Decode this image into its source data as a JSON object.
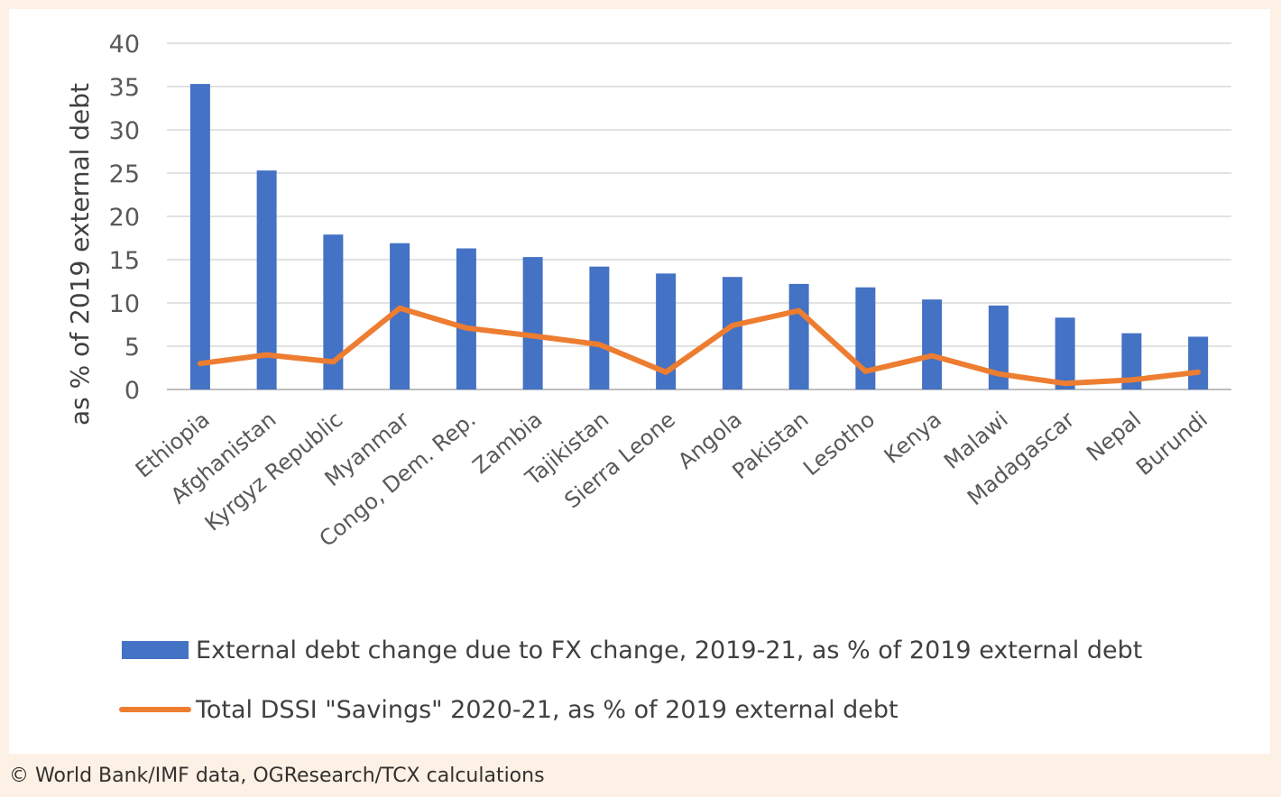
{
  "chart_data": {
    "type": "bar",
    "categories": [
      "Ethiopia",
      "Afghanistan",
      "Kyrgyz Republic",
      "Myanmar",
      "Congo, Dem. Rep.",
      "Zambia",
      "Tajikistan",
      "Sierra Leone",
      "Angola",
      "Pakistan",
      "Lesotho",
      "Kenya",
      "Malawi",
      "Madagascar",
      "Nepal",
      "Burundi"
    ],
    "series": [
      {
        "name": "External debt change due to FX change, 2019-21, as % of 2019 external debt",
        "type": "bar",
        "color": "#4472c4",
        "values": [
          35.3,
          25.3,
          17.9,
          16.9,
          16.3,
          15.3,
          14.2,
          13.4,
          13.0,
          12.2,
          11.8,
          10.4,
          9.7,
          8.3,
          6.5,
          6.1
        ]
      },
      {
        "name": "Total DSSI \"Savings\" 2020-21, as % of 2019 external debt",
        "type": "line",
        "color": "#ed7d31",
        "values": [
          3.0,
          4.0,
          3.2,
          9.4,
          7.1,
          6.2,
          5.2,
          2.0,
          7.4,
          9.1,
          2.1,
          3.9,
          1.8,
          0.7,
          1.1,
          2.0
        ]
      }
    ],
    "xlabel": "",
    "ylabel": "as % of 2019 external debt",
    "ylim": [
      0,
      40
    ],
    "yticks": [
      0,
      5,
      10,
      15,
      20,
      25,
      30,
      35,
      40
    ],
    "grid": true,
    "legend_position": "bottom"
  },
  "footer": {
    "credit": "© World Bank/IMF data, OGResearch/TCX calculations"
  }
}
